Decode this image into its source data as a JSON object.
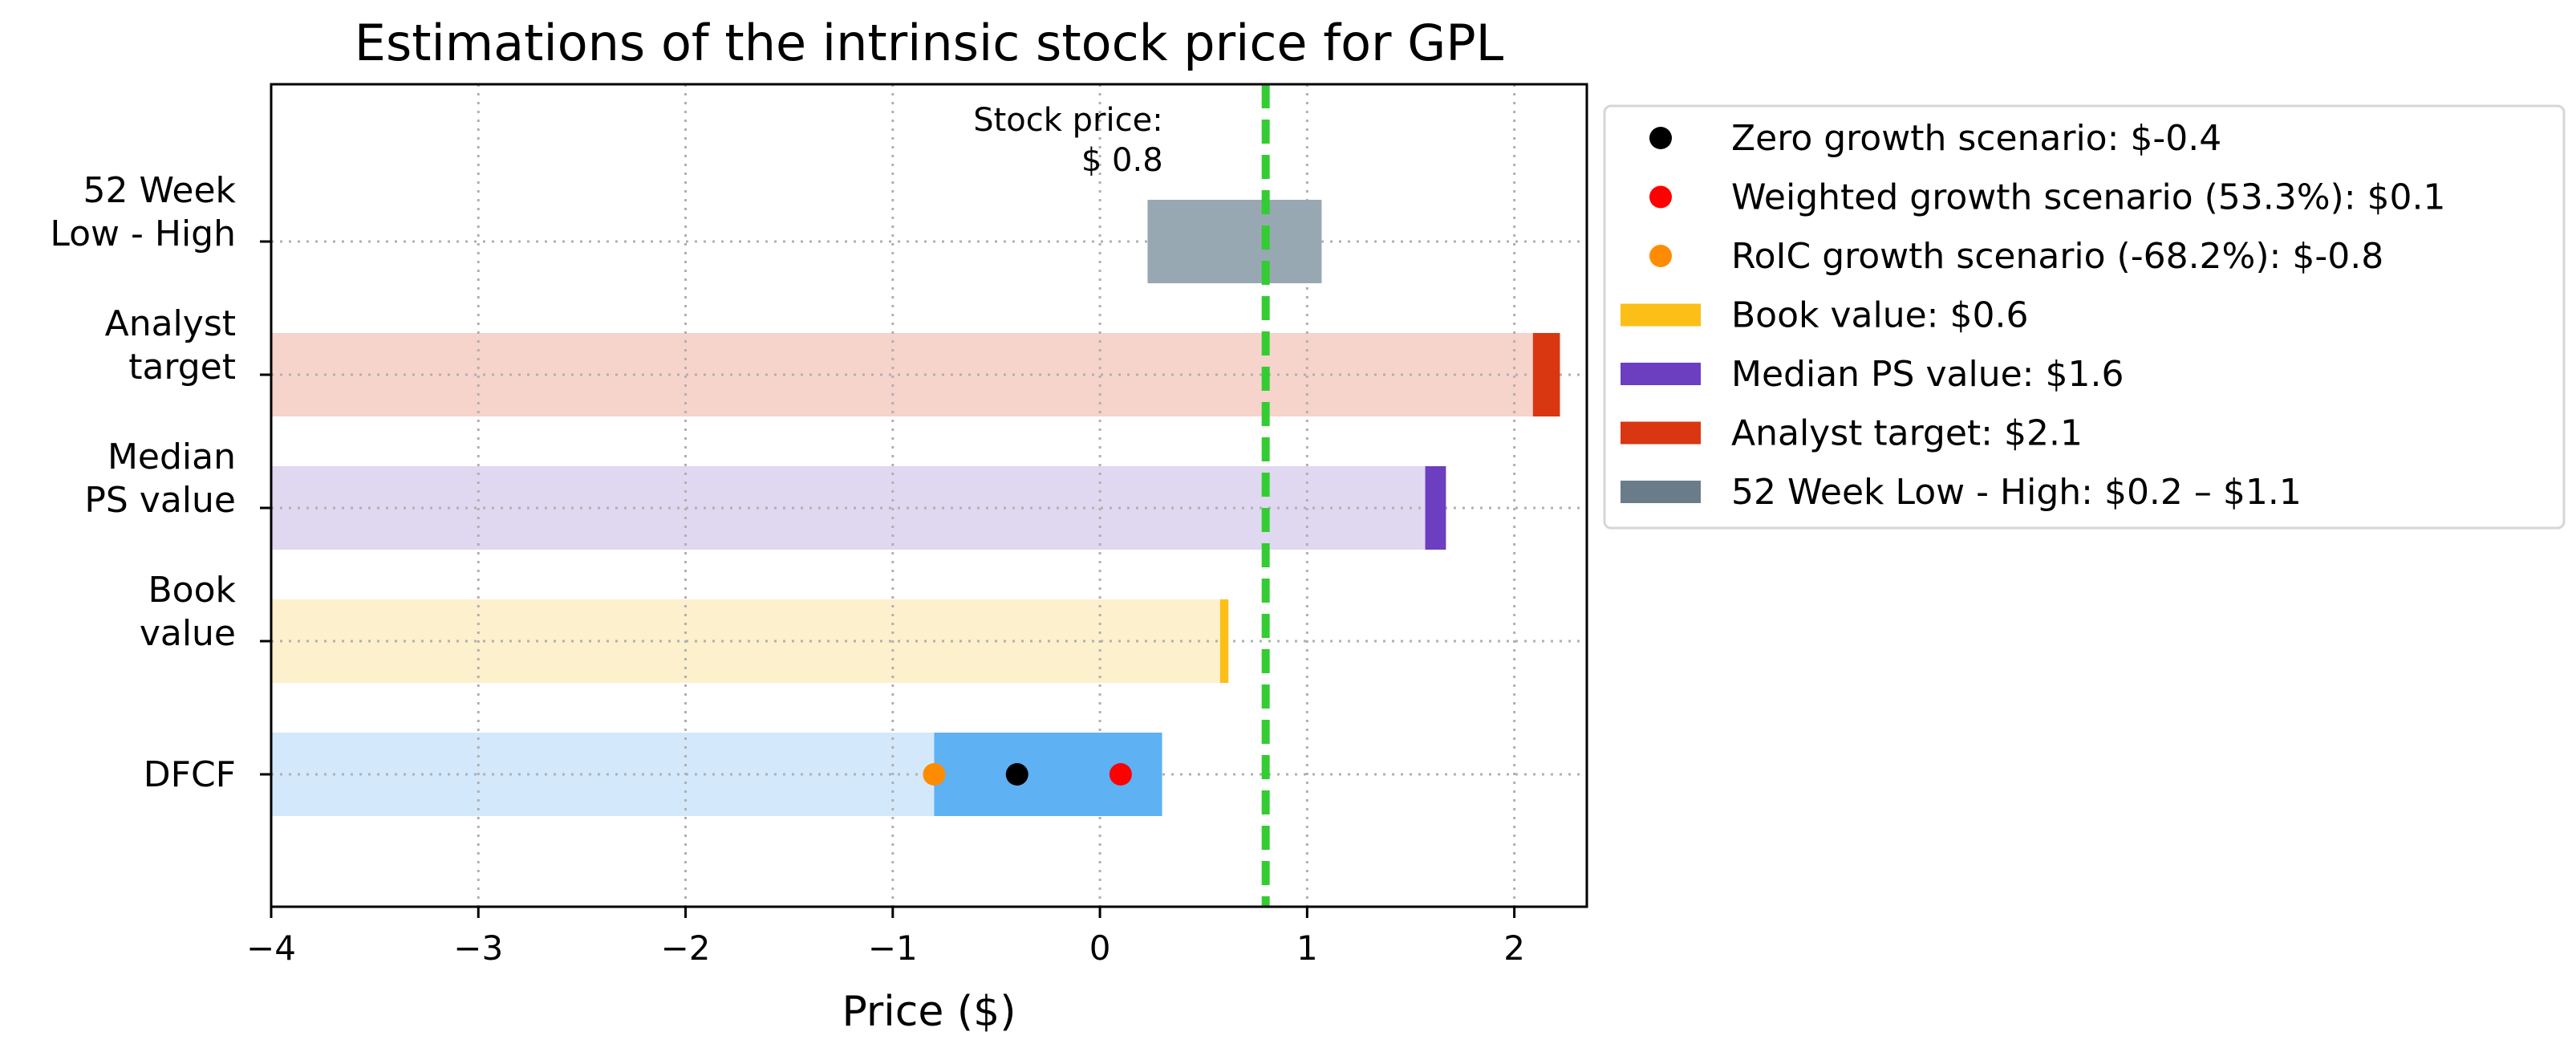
{
  "chart_data": {
    "type": "bar",
    "orientation": "horizontal",
    "title": "Estimations of the intrinsic stock price for GPL",
    "xlabel": "Price ($)",
    "ylabel": "",
    "xlim": [
      -4,
      2.35
    ],
    "xticks": [
      -4,
      -3,
      -2,
      -1,
      0,
      1,
      2
    ],
    "xtick_labels": [
      "−4",
      "−3",
      "−2",
      "−1",
      "0",
      "1",
      "2"
    ],
    "grid": true,
    "legend_position": "outside-right",
    "categories": [
      {
        "label": [
          "DFCF"
        ]
      },
      {
        "label": [
          "Book",
          "value"
        ]
      },
      {
        "label": [
          "Median",
          "PS value"
        ]
      },
      {
        "label": [
          "Analyst",
          "target"
        ]
      },
      {
        "label": [
          "52 Week",
          "Low - High"
        ]
      }
    ],
    "ranges": [
      {
        "category": 0,
        "from": -0.8,
        "to": 0.3,
        "color": "#5eb1f3",
        "background": "#d3e8fa"
      },
      {
        "category": 1,
        "from": 0.58,
        "to": 0.62,
        "color": "#fbbf17",
        "background": "#fdf0cc"
      },
      {
        "category": 2,
        "from": 1.57,
        "to": 1.67,
        "color": "#6b3fbf",
        "background": "#e0d8f0"
      },
      {
        "category": 3,
        "from": 2.09,
        "to": 2.22,
        "color": "#d93612",
        "background": "#f6d3cb"
      },
      {
        "category": 4,
        "from": 0.23,
        "to": 1.07,
        "color": "#98a8b2",
        "background": null
      }
    ],
    "points": [
      {
        "name": "Zero growth scenario",
        "category": 0,
        "x": -0.4,
        "color": "#000000"
      },
      {
        "name": "Weighted growth scenario",
        "category": 0,
        "x": 0.1,
        "color": "#ff0000"
      },
      {
        "name": "RoIC growth scenario",
        "category": 0,
        "x": -0.8,
        "color": "#ff8c00"
      }
    ],
    "stock_price": {
      "value": 0.8,
      "label_line1": "Stock price:",
      "label_line2": "$ 0.8",
      "color": "#33cc33"
    },
    "legend": [
      {
        "kind": "dot",
        "color": "#000000",
        "text": "Zero growth scenario: $-0.4"
      },
      {
        "kind": "dot",
        "color": "#ff0000",
        "text": "Weighted growth scenario (53.3%): $0.1"
      },
      {
        "kind": "dot",
        "color": "#ff8c00",
        "text": "RoIC growth scenario (-68.2%): $-0.8"
      },
      {
        "kind": "patch",
        "color": "#fbbf17",
        "text": "Book value: $0.6"
      },
      {
        "kind": "patch",
        "color": "#6b3fbf",
        "text": "Median PS value: $1.6"
      },
      {
        "kind": "patch",
        "color": "#d93612",
        "text": "Analyst target: $2.1"
      },
      {
        "kind": "patch",
        "color": "#6a7c89",
        "text": "52 Week Low - High: $0.2 – $1.1"
      }
    ]
  }
}
